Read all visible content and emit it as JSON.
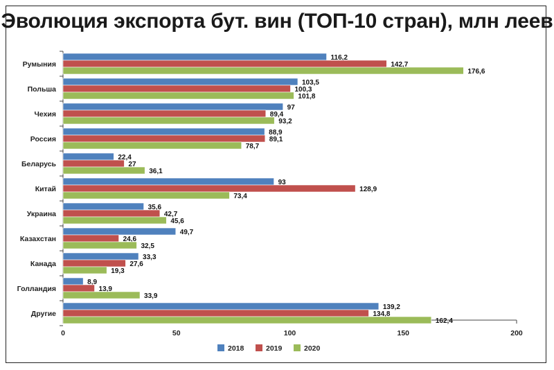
{
  "chart_data": {
    "type": "bar",
    "orientation": "horizontal",
    "title": "Эволюция экспорта бут. вин (ТОП-10 стран), млн леев",
    "categories": [
      "Румыния",
      "Польша",
      "Чехия",
      "Россия",
      "Беларусь",
      "Китай",
      "Украина",
      "Казахстан",
      "Канада",
      "Голландия",
      "Другие"
    ],
    "series": [
      {
        "name": "2018",
        "color": "#4f81bd",
        "values": [
          116.2,
          103.5,
          97,
          88.9,
          22.4,
          93,
          35.6,
          49.7,
          33.3,
          8.9,
          139.2
        ],
        "labels": [
          "116,2",
          "103,5",
          "97",
          "88,9",
          "22,4",
          "93",
          "35,6",
          "49,7",
          "33,3",
          "8,9",
          "139,2"
        ]
      },
      {
        "name": "2019",
        "color": "#c0504d",
        "values": [
          142.7,
          100.3,
          89.4,
          89.1,
          27,
          128.9,
          42.7,
          24.6,
          27.6,
          13.9,
          134.8
        ],
        "labels": [
          "142,7",
          "100,3",
          "89,4",
          "89,1",
          "27",
          "128,9",
          "42,7",
          "24,6",
          "27,6",
          "13,9",
          "134,8"
        ]
      },
      {
        "name": "2020",
        "color": "#9bbb59",
        "values": [
          176.6,
          101.8,
          93.2,
          78.7,
          36.1,
          73.4,
          45.6,
          32.5,
          19.3,
          33.9,
          162.4
        ],
        "labels": [
          "176,6",
          "101,8",
          "93,2",
          "78,7",
          "36,1",
          "73,4",
          "45,6",
          "32,5",
          "19,3",
          "33,9",
          "162,4"
        ]
      }
    ],
    "xlim": [
      0,
      200
    ],
    "xticks": [
      0,
      50,
      100,
      150,
      200
    ],
    "legend": "bottom",
    "grid": false
  }
}
